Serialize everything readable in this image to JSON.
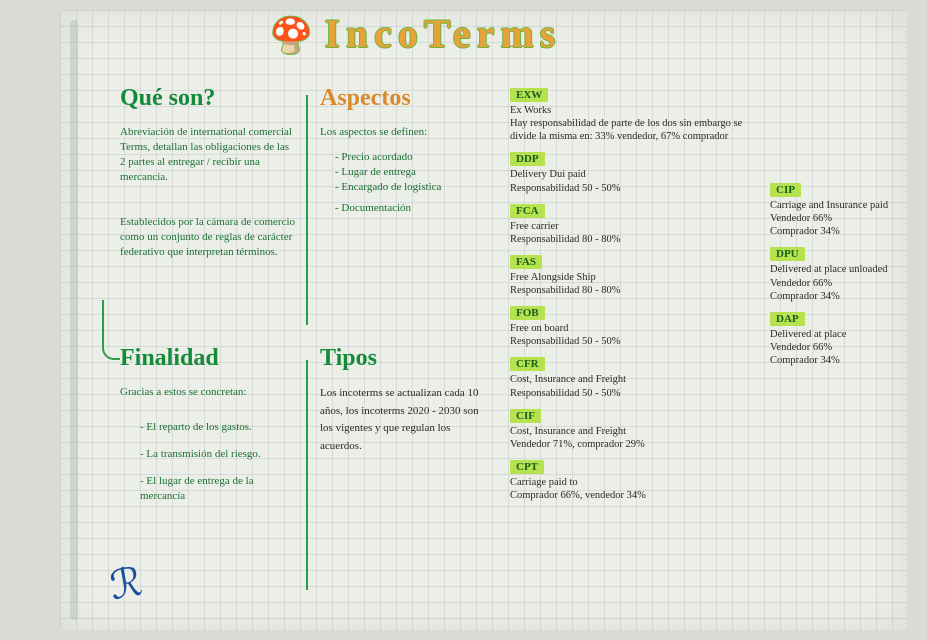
{
  "title": "IncoTerms",
  "sections": {
    "que_son": {
      "heading": "Qué son?",
      "p1": "Abreviación de international comercial Terms, detallan las obligaciones de las 2 partes al entregar / recibir una mercancía.",
      "p2": "Establecidos por la cámara de comercio como un conjunto de reglas de carácter federativo que interpretan términos."
    },
    "aspectos": {
      "heading": "Aspectos",
      "intro": "Los aspectos se definen:",
      "items": [
        "- Precio acordado",
        "- Lugar de entrega",
        "- Encargado de logística",
        "- Documentación"
      ]
    },
    "finalidad": {
      "heading": "Finalidad",
      "intro": "Gracias a estos se concretan:",
      "items": [
        "- El reparto de los gastos.",
        "- La transmisión del riesgo.",
        "- El lugar de entrega de la mercancía"
      ]
    },
    "tipos": {
      "heading": "Tipos",
      "body": "Los incoterms se actualizan cada 10 años, los incoterms 2020 - 2030 son los vigentes y que regulan los acuerdos."
    }
  },
  "terms_left": [
    {
      "tag": "EXW",
      "body": "Ex Works\nHay responsabilidad de parte de los dos sin embargo se divide la misma en: 33% vendedor, 67% comprador"
    },
    {
      "tag": "DDP",
      "body": "Delivery Dui paid\nResponsabilidad 50 - 50%"
    },
    {
      "tag": "FCA",
      "body": "Free carrier\nResponsabilidad 80 - 80%"
    },
    {
      "tag": "FAS",
      "body": "Free Alongside Ship\nResponsabilidad 80 - 80%"
    },
    {
      "tag": "FOB",
      "body": "Free on board\nResponsabilidad 50 - 50%"
    },
    {
      "tag": "CFR",
      "body": "Cost, Insurance and Freight\nResponsabilidad 50 - 50%"
    },
    {
      "tag": "CIF",
      "body": "Cost, Insurance and Freight\nVendedor 71%, comprador 29%"
    },
    {
      "tag": "CPT",
      "body": "Carriage paid to\nComprador 66%, vendedor 34%"
    }
  ],
  "terms_right": [
    {
      "tag": "CIP",
      "body": "Carriage and Insurance paid\nVendedor 66%\nComprador 34%"
    },
    {
      "tag": "DPU",
      "body": "Delivered at place unloaded\nVendedor 66%\nComprador 34%"
    },
    {
      "tag": "DAP",
      "body": "Delivered at place\nVendedor 66%\nComprador 34%"
    }
  ],
  "colors": {
    "green_heading": "#158a3a",
    "orange_heading": "#d98a2b",
    "highlight": "#b6e24f"
  }
}
